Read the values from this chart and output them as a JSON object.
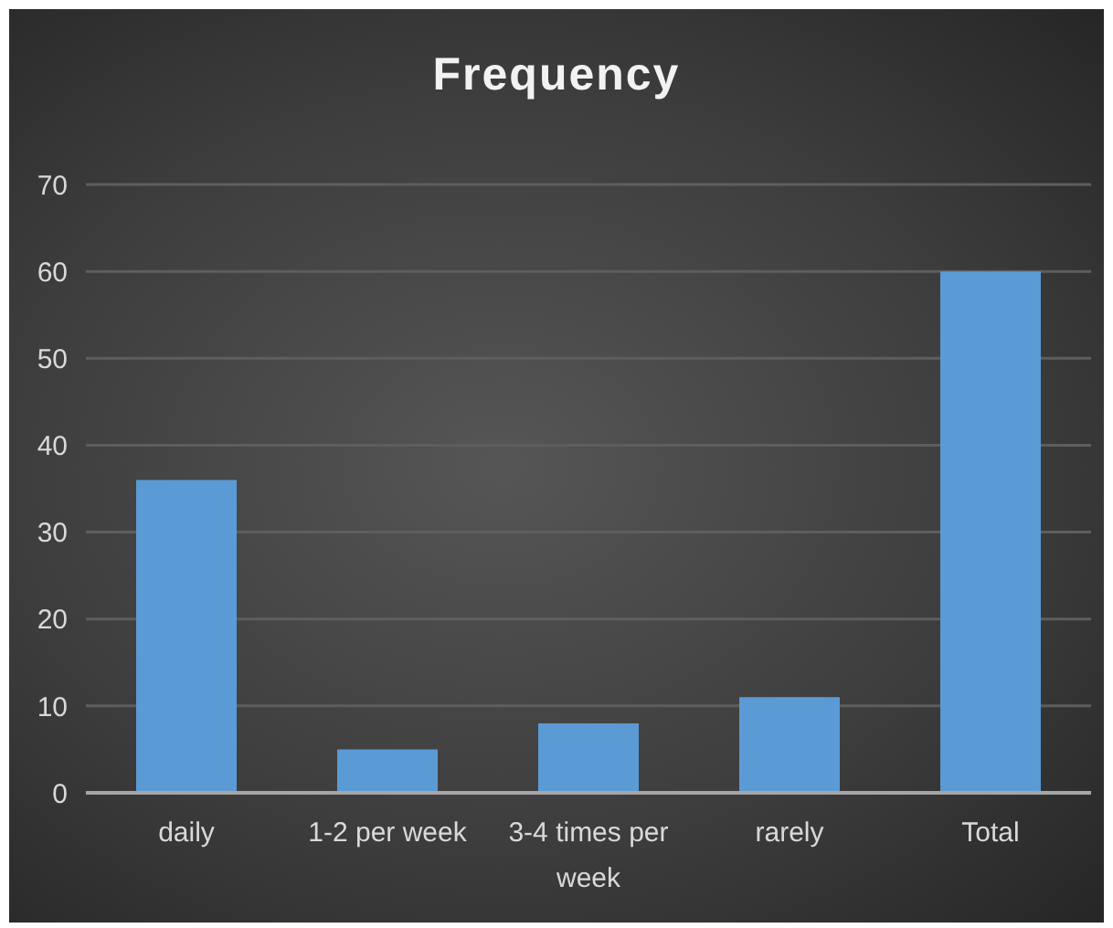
{
  "chart_data": {
    "type": "bar",
    "title": "Frequency",
    "categories": [
      "daily",
      "1-2 per week",
      "3-4 times per week",
      "rarely",
      "Total"
    ],
    "values": [
      36,
      5,
      8,
      11,
      60
    ],
    "color": "#5b9bd5",
    "ylim": [
      0,
      70
    ],
    "yticks": [
      0,
      10,
      20,
      30,
      40,
      50,
      60,
      70
    ],
    "grid": "y"
  }
}
